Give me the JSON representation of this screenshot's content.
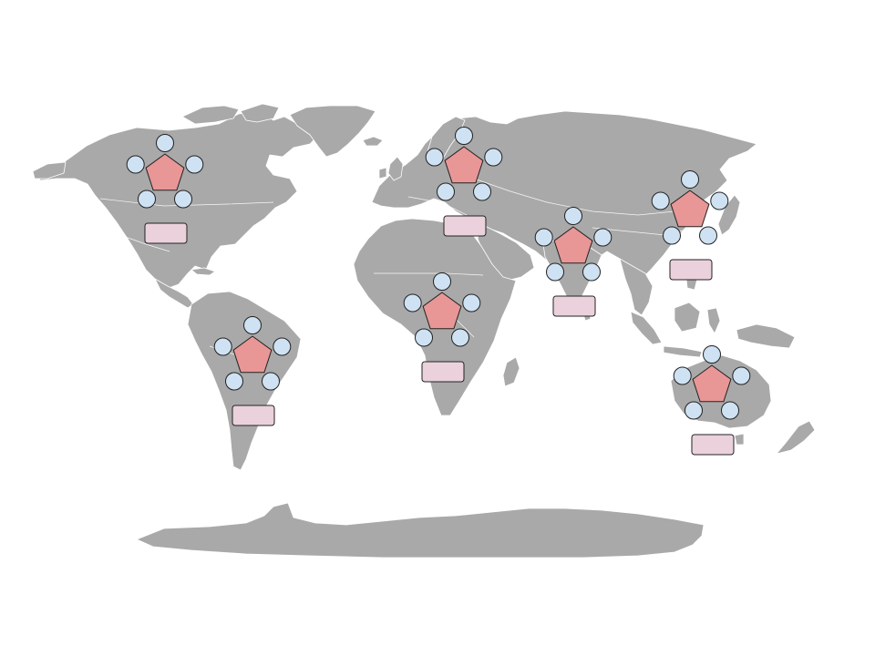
{
  "map": {
    "style": {
      "land_color": "#a9a9a9",
      "ocean_color": "#ffffff",
      "border_color": "#ffffff",
      "hub_color": "#e89696",
      "node_color": "#cfe2f3",
      "label_box_color": "#ead1dc",
      "outline_color": "#222222"
    },
    "clusters": [
      {
        "region": "north-america",
        "hub_shape": "pentagon",
        "satellite_count": 5,
        "label": ""
      },
      {
        "region": "south-america",
        "hub_shape": "pentagon",
        "satellite_count": 5,
        "label": ""
      },
      {
        "region": "europe",
        "hub_shape": "pentagon",
        "satellite_count": 5,
        "label": ""
      },
      {
        "region": "africa",
        "hub_shape": "pentagon",
        "satellite_count": 5,
        "label": ""
      },
      {
        "region": "south-asia",
        "hub_shape": "pentagon",
        "satellite_count": 5,
        "label": ""
      },
      {
        "region": "east-asia",
        "hub_shape": "pentagon",
        "satellite_count": 5,
        "label": ""
      },
      {
        "region": "australia",
        "hub_shape": "pentagon",
        "satellite_count": 5,
        "label": ""
      }
    ]
  }
}
